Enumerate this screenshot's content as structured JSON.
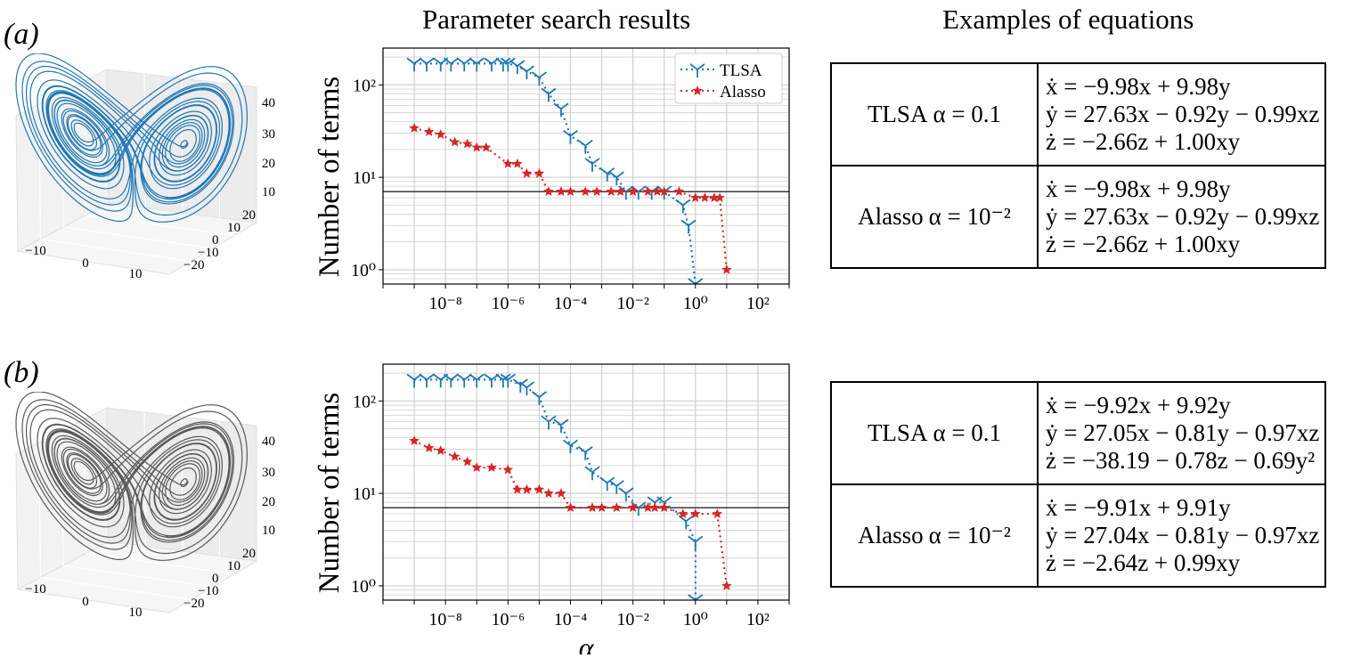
{
  "headings": {
    "middle": "Parameter search results",
    "right": "Examples of equations"
  },
  "panels": [
    {
      "label": "(a)",
      "attractor_color": "#1f77b4",
      "ylabel": "Number of terms",
      "xlabel": "",
      "table": [
        {
          "method": "TLSA",
          "param": "α = 0.1",
          "equations": [
            "ẋ = −9.98x + 9.98y",
            "ẏ = 27.63x − 0.92y − 0.99xz",
            "ż = −2.66z + 1.00xy"
          ]
        },
        {
          "method": "Alasso",
          "param": "α = 10⁻²",
          "equations": [
            "ẋ = −9.98x + 9.98y",
            "ẏ = 27.63x − 0.92y − 0.99xz",
            "ż = −2.66z + 1.00xy"
          ]
        }
      ]
    },
    {
      "label": "(b)",
      "attractor_color": "#595959",
      "ylabel": "Number of terms",
      "xlabel": "α",
      "table": [
        {
          "method": "TLSA",
          "param": "α = 0.1",
          "equations": [
            "ẋ = −9.92x + 9.92y",
            "ẏ = 27.05x − 0.81y − 0.97xz",
            "ż = −38.19 − 0.78z − 0.69y²"
          ]
        },
        {
          "method": "Alasso",
          "param": "α = 10⁻²",
          "equations": [
            "ẋ = −9.91x + 9.91y",
            "ẏ = 27.04x − 0.81y − 0.97xz",
            "ż = −2.64z + 0.99xy"
          ]
        }
      ]
    }
  ],
  "attractor_axes": {
    "x_ticks": [
      "−10",
      "0",
      "10"
    ],
    "y_ticks": [
      "20",
      "10",
      "0",
      "−10",
      "−20"
    ],
    "z_ticks": [
      "40",
      "30",
      "20",
      "10"
    ]
  },
  "chart_data": [
    {
      "type": "line",
      "panel": "a",
      "title": "",
      "xlabel": "",
      "ylabel": "Number of terms",
      "xscale": "log",
      "yscale": "log",
      "xlim": [
        1e-10,
        1000.0
      ],
      "ylim": [
        0.7,
        250
      ],
      "x_ticks": [
        "10⁻⁸",
        "10⁻⁶",
        "10⁻⁴",
        "10⁻²",
        "10⁰",
        "10²"
      ],
      "y_ticks": [
        "10⁰",
        "10¹",
        "10²"
      ],
      "grid": true,
      "legend_position": "top-right",
      "reference_line": 7,
      "series": [
        {
          "name": "TLSA",
          "color": "#1f77b4",
          "marker": "tri",
          "x": [
            1e-09,
            2.5e-09,
            7e-09,
            1.5e-08,
            4e-08,
            1e-07,
            3e-07,
            7e-07,
            1e-06,
            2e-06,
            4e-06,
            1e-05,
            2e-05,
            5e-05,
            0.0001,
            0.0003,
            0.0005,
            0.0015,
            0.003,
            0.006,
            0.015,
            0.04,
            0.1,
            0.4,
            0.6,
            1
          ],
          "y": [
            170,
            170,
            170,
            170,
            170,
            170,
            170,
            170,
            170,
            160,
            140,
            120,
            80,
            55,
            28,
            22,
            14,
            11,
            10,
            7,
            7,
            7,
            7,
            5,
            3,
            0.7
          ]
        },
        {
          "name": "Alasso",
          "color": "#d62728",
          "marker": "star",
          "x": [
            1e-09,
            3e-09,
            7e-09,
            2e-08,
            5e-08,
            1e-07,
            2e-07,
            1e-06,
            2e-06,
            4e-06,
            1e-05,
            2e-05,
            5e-05,
            0.0001,
            0.0003,
            0.0007,
            0.002,
            0.004,
            0.01,
            0.03,
            0.06,
            0.1,
            0.3,
            1,
            2,
            4,
            6,
            10
          ],
          "y": [
            34,
            31,
            29,
            24,
            23,
            21,
            21,
            14,
            14,
            11,
            11,
            7,
            7,
            7,
            7,
            7,
            7,
            7,
            7,
            7,
            7,
            7,
            7,
            6,
            6,
            6,
            6,
            1
          ]
        }
      ]
    },
    {
      "type": "line",
      "panel": "b",
      "title": "",
      "xlabel": "α",
      "ylabel": "Number of terms",
      "xscale": "log",
      "yscale": "log",
      "xlim": [
        1e-10,
        1000.0
      ],
      "ylim": [
        0.7,
        250
      ],
      "x_ticks": [
        "10⁻⁸",
        "10⁻⁶",
        "10⁻⁴",
        "10⁻²",
        "10⁰",
        "10²"
      ],
      "y_ticks": [
        "10⁰",
        "10¹",
        "10²"
      ],
      "grid": true,
      "reference_line": 7,
      "series": [
        {
          "name": "TLSA",
          "color": "#1f77b4",
          "marker": "tri",
          "x": [
            1e-09,
            2.5e-09,
            7e-09,
            1.5e-08,
            4e-08,
            1e-07,
            3e-07,
            7e-07,
            1e-06,
            2.5e-06,
            4e-06,
            1e-05,
            2e-05,
            5e-05,
            0.0001,
            0.0003,
            0.0005,
            0.0015,
            0.003,
            0.006,
            0.015,
            0.05,
            0.1,
            0.5,
            1,
            1
          ],
          "y": [
            170,
            170,
            170,
            170,
            170,
            170,
            170,
            170,
            170,
            150,
            140,
            110,
            60,
            55,
            33,
            28,
            17,
            13,
            12,
            10,
            7,
            8,
            8,
            5,
            3,
            0.7
          ]
        },
        {
          "name": "Alasso",
          "color": "#d62728",
          "marker": "star",
          "x": [
            1e-09,
            3e-09,
            7e-09,
            2e-08,
            5e-08,
            1e-07,
            3e-07,
            1e-06,
            2e-06,
            4e-06,
            1e-05,
            2e-05,
            5e-05,
            0.0001,
            0.0005,
            0.001,
            0.003,
            0.01,
            0.03,
            0.05,
            0.1,
            0.4,
            1,
            5,
            10
          ],
          "y": [
            37,
            31,
            29,
            25,
            22,
            19,
            19,
            18,
            11,
            11,
            11,
            10,
            10,
            7,
            7,
            7,
            7,
            7,
            7,
            7,
            7,
            6,
            6,
            6,
            1
          ]
        }
      ]
    }
  ]
}
